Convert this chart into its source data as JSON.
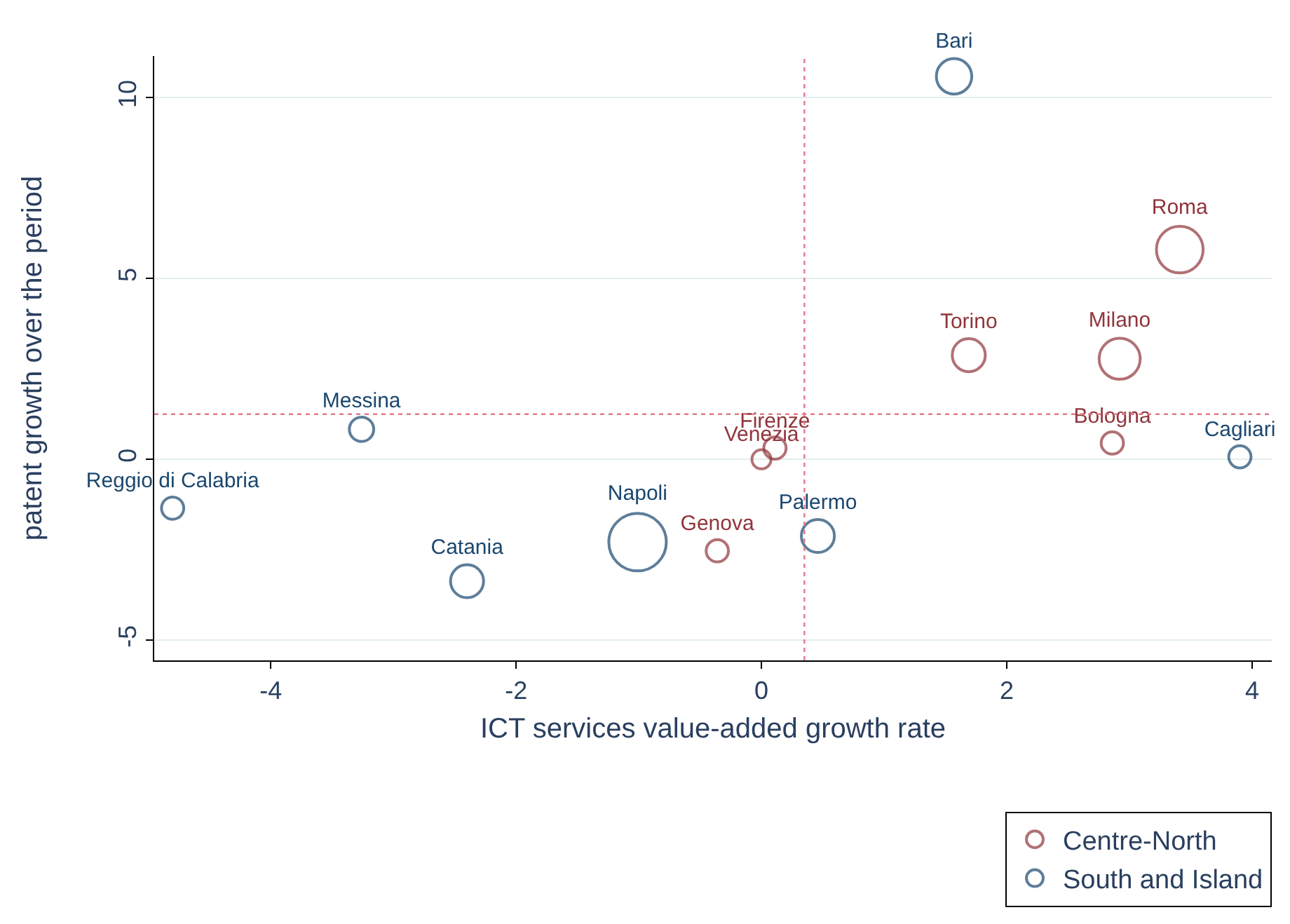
{
  "chart_data": {
    "type": "bubble",
    "xlabel": "ICT services value-added growth rate",
    "ylabel": "patent growth over the period",
    "xlim": [
      -4.95,
      4.16
    ],
    "xticks": [
      -4,
      -2,
      0,
      2,
      4
    ],
    "ylim": [
      -5.56,
      11.15
    ],
    "yticks": [
      -5,
      0,
      5,
      10
    ],
    "grid": "y",
    "legend": "bottom right",
    "marker": "circle",
    "ref_lines": [
      {
        "axis": "x",
        "value": 0.35,
        "color": "#e07a8a",
        "line_style": "dotted"
      },
      {
        "axis": "y",
        "value": 1.25,
        "color": "#e07a8a",
        "line_style": "dotted"
      }
    ],
    "series": [
      {
        "name": "Centre-North",
        "color": "#90353b",
        "x": [
          3.41,
          1.69,
          2.92,
          2.86,
          0.11,
          0.0,
          -0.36
        ],
        "values": [
          5.8,
          2.88,
          2.78,
          0.45,
          0.31,
          0.0,
          -2.53
        ],
        "sizes": [
          0.66,
          0.33,
          0.51,
          0.15,
          0.15,
          0.11,
          0.15
        ],
        "value_labels": [
          "Roma",
          "Torino",
          "Milano",
          "Bologna",
          "Firenze",
          "Venezia",
          "Genova"
        ]
      },
      {
        "name": "South and Island",
        "color": "#1a476f",
        "x": [
          1.57,
          3.9,
          -3.26,
          -4.8,
          -1.01,
          0.46,
          -2.4
        ],
        "values": [
          10.59,
          0.07,
          0.83,
          -1.35,
          -2.29,
          -2.12,
          -3.37
        ],
        "sizes": [
          0.38,
          0.15,
          0.18,
          0.15,
          1.0,
          0.33,
          0.33
        ],
        "value_labels": [
          "Bari",
          "Cagliari",
          "Messina",
          "Reggio di Calabria",
          "Napoli",
          "Palermo",
          "Catania"
        ]
      }
    ]
  }
}
